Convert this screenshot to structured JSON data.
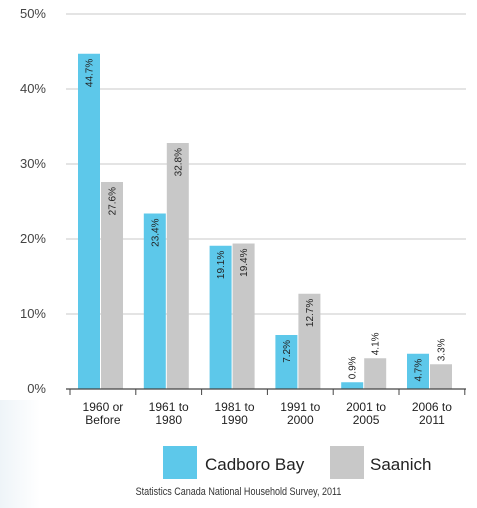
{
  "chart_data": {
    "type": "bar",
    "title": "",
    "xlabel": "",
    "ylabel": "",
    "ylim": [
      0,
      50
    ],
    "y_ticks": [
      "0%",
      "10%",
      "20%",
      "30%",
      "40%",
      "50%"
    ],
    "y_tick_values": [
      0,
      10,
      20,
      30,
      40,
      50
    ],
    "categories": [
      [
        "1960 or",
        "Before"
      ],
      [
        "1961 to",
        "1980"
      ],
      [
        "1981 to",
        "1990"
      ],
      [
        "1991 to",
        "2000"
      ],
      [
        "2001 to",
        "2005"
      ],
      [
        "2006 to",
        "2011"
      ]
    ],
    "series": [
      {
        "name": "Cadboro Bay",
        "color": "#5dc8ea",
        "values": [
          44.7,
          23.4,
          19.1,
          7.2,
          0.9,
          4.7
        ],
        "labels": [
          "44.7%",
          "23.4%",
          "19.1%",
          "7.2%",
          "0.9%",
          "4.7%"
        ]
      },
      {
        "name": "Saanich",
        "color": "#c8c8c8",
        "values": [
          27.6,
          32.8,
          19.4,
          12.7,
          4.1,
          3.3
        ],
        "labels": [
          "27.6%",
          "32.8%",
          "19.4%",
          "12.7%",
          "4.1%",
          "3.3%"
        ]
      }
    ],
    "grid": true,
    "legend": "bottom-right"
  },
  "source": "Statistics Canada National Household Survey, 2011"
}
